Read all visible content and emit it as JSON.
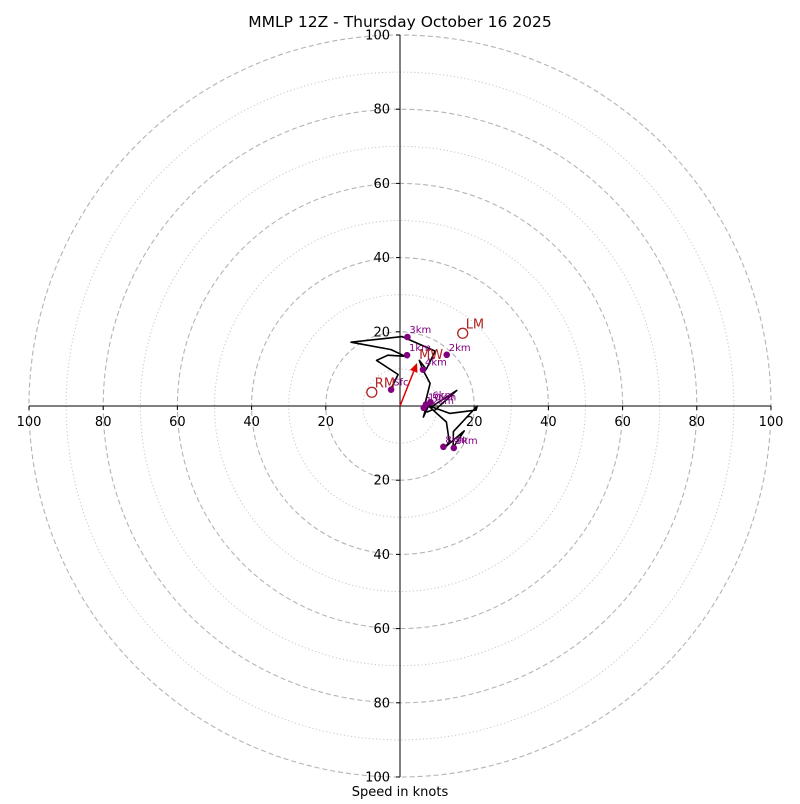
{
  "chart_data": {
    "type": "hodograph",
    "title": "MMLP 12Z - Thursday October 16 2025",
    "xlabel": "Speed in knots",
    "units": "knots",
    "range": [
      -100,
      100
    ],
    "major_rings": [
      20,
      40,
      60,
      80,
      100
    ],
    "minor_rings": [
      10,
      30,
      50,
      70,
      90
    ],
    "x_tick_labels": [
      {
        "v": -100,
        "label": "100"
      },
      {
        "v": -80,
        "label": "80"
      },
      {
        "v": -60,
        "label": "60"
      },
      {
        "v": -40,
        "label": "40"
      },
      {
        "v": -20,
        "label": "20"
      },
      {
        "v": 20,
        "label": "20"
      },
      {
        "v": 40,
        "label": "40"
      },
      {
        "v": 60,
        "label": "60"
      },
      {
        "v": 80,
        "label": "80"
      },
      {
        "v": 100,
        "label": "100"
      }
    ],
    "y_tick_labels": [
      {
        "v": 100,
        "label": "100"
      },
      {
        "v": 80,
        "label": "80"
      },
      {
        "v": 60,
        "label": "60"
      },
      {
        "v": 40,
        "label": "40"
      },
      {
        "v": 20,
        "label": "20"
      },
      {
        "v": -20,
        "label": "20"
      },
      {
        "v": -40,
        "label": "40"
      },
      {
        "v": -60,
        "label": "60"
      },
      {
        "v": -80,
        "label": "80"
      },
      {
        "v": -100,
        "label": "100"
      }
    ],
    "trace": [
      [
        -2.5,
        4.5
      ],
      [
        -0.5,
        8.5
      ],
      [
        -6.3,
        12.3
      ],
      [
        -3.3,
        13.7
      ],
      [
        1.4,
        13.4
      ],
      [
        -2.4,
        15.2
      ],
      [
        -13.2,
        17.2
      ],
      [
        0.6,
        18.7
      ],
      [
        9.5,
        14.8
      ],
      [
        7.1,
        9.9
      ],
      [
        5.2,
        12.3
      ],
      [
        6.1,
        9.9
      ],
      [
        8.1,
        6.1
      ],
      [
        6.8,
        0.8
      ],
      [
        9.2,
        -1.3
      ],
      [
        15.3,
        4.2
      ],
      [
        8.5,
        -0.2
      ],
      [
        13.4,
        -2.0
      ],
      [
        20.5,
        -1.1
      ],
      [
        20.8,
        0.0
      ],
      [
        14.4,
        -6.9
      ],
      [
        14.3,
        -11.2
      ],
      [
        17.3,
        -6.7
      ],
      [
        12.3,
        -11.0
      ],
      [
        13.3,
        -9.6
      ],
      [
        12.5,
        -4.3
      ],
      [
        8.8,
        -1.0
      ],
      [
        7.4,
        -1.6
      ],
      [
        6.8,
        -1.2
      ],
      [
        6.3,
        -3.0
      ],
      [
        7.6,
        -0.2
      ],
      [
        7.8,
        0.7
      ],
      [
        8.7,
        0.8
      ],
      [
        7.6,
        0.8
      ],
      [
        7.0,
        0.6
      ],
      [
        6.3,
        -1.1
      ],
      [
        7.1,
        -0.9
      ],
      [
        6.2,
        -0.4
      ],
      [
        8.0,
        0.8
      ],
      [
        6.7,
        0.4
      ]
    ],
    "height_labels": [
      {
        "label": "Sfc",
        "u": -2.4,
        "v": 4.4
      },
      {
        "label": "1km",
        "u": 1.9,
        "v": 13.7
      },
      {
        "label": "2km",
        "u": 12.6,
        "v": 13.8
      },
      {
        "label": "3km",
        "u": 2.0,
        "v": 18.6
      },
      {
        "label": "4km",
        "u": 6.2,
        "v": 9.8
      },
      {
        "label": "6km",
        "u": 8.2,
        "v": 1.0
      },
      {
        "label": "8km",
        "u": 11.7,
        "v": -11.0
      },
      {
        "label": "9km",
        "u": 14.5,
        "v": -11.3
      },
      {
        "label": "10km",
        "u": 7.0,
        "v": 0.4
      },
      {
        "label": "12km",
        "u": 6.4,
        "v": -0.5
      }
    ],
    "motions": [
      {
        "label": "LM",
        "u": 16.9,
        "v": 19.6
      },
      {
        "label": "RM",
        "u": -7.6,
        "v": 3.7
      }
    ],
    "mean_wind": {
      "label": "MW",
      "u": 4.6,
      "v": 11.6
    }
  }
}
